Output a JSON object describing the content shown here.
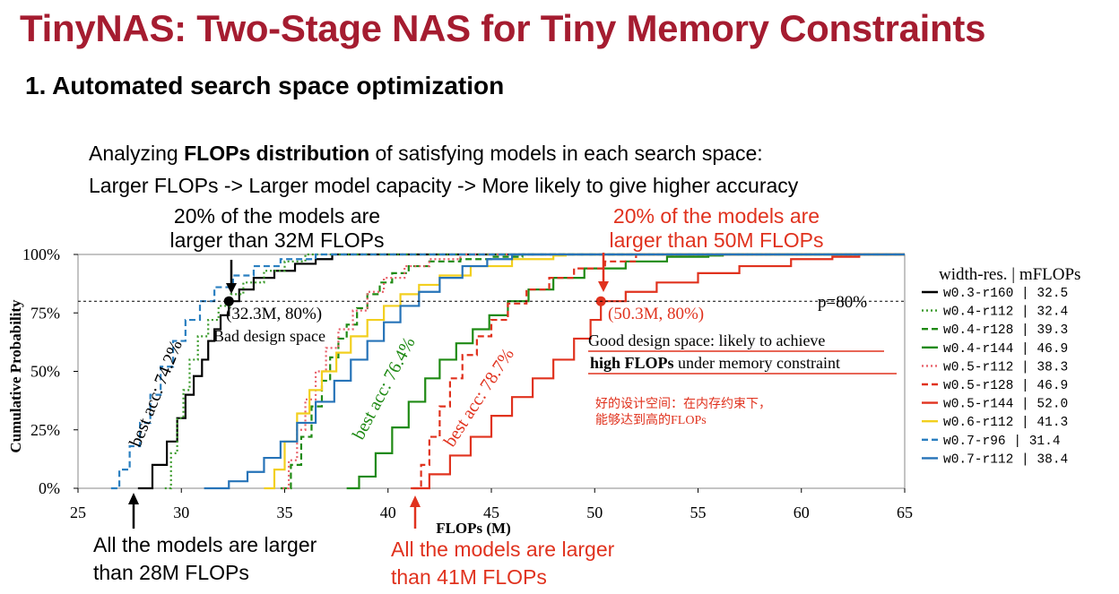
{
  "title": "TinyNAS: Two-Stage NAS for Tiny Memory Constraints",
  "subtitle": "1. Automated search space optimization",
  "intro": {
    "line1_pre": "Analyzing ",
    "line1_bold": "FLOPs distribution",
    "line1_post": " of satisfying models in each search space:",
    "line2": "Larger FLOPs -> Larger model capacity -> More likely to give higher accuracy"
  },
  "callouts": {
    "top_black_1": "20% of the models are",
    "top_black_2": "larger than 32M FLOPs",
    "top_red_1": "20% of the models are",
    "top_red_2": "larger than 50M FLOPs",
    "bottom_black_1": "All the models are larger",
    "bottom_black_2": "than 28M FLOPs",
    "bottom_red_1": "All the models are larger",
    "bottom_red_2": "than 41M FLOPs"
  },
  "annotations": {
    "point_black": "(32.3M, 80%)",
    "bad_design": "Bad design space",
    "point_red": "(50.3M, 80%)",
    "p80": "p=80%",
    "good_line1": "Good design space: likely to achieve",
    "good_line2_bold": "high FLOPs",
    "good_line2_rest": " under memory constraint",
    "cn_line1": "好的设计空间：在内存约束下，",
    "cn_line2": "能够达到高的FLOPs",
    "best_acc_black": "best acc: 74.2%",
    "best_acc_green": "best acc: 76.4%",
    "best_acc_red": "best acc: 78.7%"
  },
  "legend_header": "width-res. | mFLOPs",
  "colors": {
    "title_red": "#a51c30",
    "callout_red": "#e0321e",
    "black": "#000000",
    "green_dotted": "#3a9a2a",
    "dark_green": "#1f8a14",
    "pink": "#e8606a",
    "red_dashed": "#e0321e",
    "red": "#e0321e",
    "yellow": "#f2cf1e",
    "blue_dashed": "#2a7fc0",
    "blue": "#2673b8"
  },
  "chart_data": {
    "type": "line",
    "xlabel": "FLOPs (M)",
    "ylabel": "Cumulative Probability",
    "xlim": [
      25,
      65
    ],
    "ylim": [
      0,
      100
    ],
    "x_ticks": [
      "25",
      "30",
      "35",
      "40",
      "45",
      "50",
      "55",
      "60",
      "65"
    ],
    "y_ticks": [
      "0%",
      "25%",
      "50%",
      "75%",
      "100%"
    ],
    "reference_line_y": 80,
    "highlight_points": [
      {
        "x": 32.3,
        "y": 80
      },
      {
        "x": 50.3,
        "y": 80
      }
    ],
    "series": [
      {
        "name": "w0.3-r160",
        "mflops": "32.5",
        "color": "#000000",
        "dash": "solid",
        "x": [
          27.9,
          28.6,
          29.3,
          29.8,
          30.2,
          30.6,
          31.0,
          31.3,
          31.6,
          31.9,
          32.3,
          32.8,
          33.5,
          34.5,
          35.5,
          36.5,
          37.3
        ],
        "y": [
          0,
          10,
          20,
          30,
          40,
          48,
          55,
          63,
          68,
          74,
          80,
          85,
          90,
          93,
          96,
          98,
          100
        ]
      },
      {
        "name": "w0.4-r112",
        "mflops": "32.4",
        "color": "#3a9a2a",
        "dash": "dotted",
        "x": [
          29.2,
          29.5,
          29.8,
          30.1,
          30.4,
          30.8,
          31.3,
          31.8,
          32.4,
          33.0,
          34.0,
          35.0,
          36.0
        ],
        "y": [
          0,
          15,
          30,
          42,
          55,
          65,
          72,
          78,
          83,
          88,
          93,
          97,
          100
        ]
      },
      {
        "name": "w0.4-r128",
        "mflops": "39.3",
        "color": "#1f8a14",
        "dash": "dashed",
        "x": [
          34.8,
          35.3,
          35.8,
          36.3,
          36.8,
          37.2,
          37.6,
          38.0,
          38.5,
          39.0,
          39.6,
          40.2,
          41.0,
          42.0,
          43.5,
          45.0,
          46.5
        ],
        "y": [
          0,
          10,
          22,
          35,
          46,
          56,
          64,
          70,
          77,
          83,
          88,
          92,
          95,
          97,
          98,
          99,
          100
        ]
      },
      {
        "name": "w0.4-r144",
        "mflops": "46.9",
        "color": "#1f8a14",
        "dash": "solid",
        "x": [
          38.0,
          38.6,
          39.4,
          40.2,
          41.0,
          41.8,
          42.5,
          43.3,
          44.1,
          44.9,
          45.8,
          46.8,
          48.0,
          49.5,
          51.5,
          53.5,
          55.5,
          56.2
        ],
        "y": [
          0,
          5,
          15,
          26,
          37,
          47,
          55,
          62,
          68,
          74,
          80,
          85,
          90,
          94,
          97,
          99,
          99.5,
          100
        ]
      },
      {
        "name": "w0.5-r112",
        "mflops": "38.3",
        "color": "#e8606a",
        "dash": "dotted",
        "x": [
          34.9,
          35.2,
          35.6,
          36.0,
          36.5,
          37.0,
          37.6,
          38.3,
          39.0,
          39.8,
          40.8,
          42.0,
          43.5
        ],
        "y": [
          0,
          12,
          25,
          38,
          50,
          60,
          68,
          76,
          84,
          90,
          95,
          98,
          100
        ]
      },
      {
        "name": "w0.5-r128",
        "mflops": "46.9",
        "color": "#e0321e",
        "dash": "dashed",
        "x": [
          41.2,
          41.6,
          42.0,
          42.5,
          43.0,
          43.6,
          44.3,
          45.0,
          45.8,
          46.7,
          47.8,
          49.0,
          50.5,
          52.0
        ],
        "y": [
          0,
          10,
          22,
          35,
          47,
          57,
          65,
          72,
          79,
          85,
          90,
          94,
          97,
          100
        ]
      },
      {
        "name": "w0.5-r144",
        "mflops": "52.0",
        "color": "#e0321e",
        "dash": "solid",
        "x": [
          41.1,
          42.0,
          43.0,
          44.0,
          45.0,
          46.0,
          47.0,
          48.0,
          49.0,
          49.8,
          50.3,
          51.5,
          53.0,
          55.0,
          57.0,
          59.5,
          61.5,
          62.8
        ],
        "y": [
          0,
          6,
          14,
          22,
          31,
          39,
          47,
          55,
          64,
          72,
          80,
          84,
          88,
          92,
          95,
          98,
          99,
          100
        ]
      },
      {
        "name": "w0.6-r112",
        "mflops": "41.3",
        "color": "#f2cf1e",
        "dash": "solid",
        "x": [
          34.0,
          34.5,
          35.0,
          35.6,
          36.2,
          36.8,
          37.5,
          38.2,
          39.0,
          39.8,
          40.6,
          41.5,
          42.5,
          44.0,
          46.0,
          48.0,
          48.6
        ],
        "y": [
          0,
          8,
          20,
          32,
          42,
          50,
          58,
          65,
          72,
          78,
          83,
          87,
          91,
          95,
          98,
          99.5,
          100
        ]
      },
      {
        "name": "w0.7-r96",
        "mflops": "31.4",
        "color": "#2a7fc0",
        "dash": "dashed",
        "x": [
          26.6,
          27.0,
          27.5,
          28.0,
          28.5,
          29.0,
          29.6,
          30.2,
          30.9,
          31.6,
          32.5,
          33.5,
          34.8,
          36.5
        ],
        "y": [
          0,
          8,
          18,
          28,
          40,
          52,
          63,
          72,
          80,
          86,
          91,
          95,
          98,
          100
        ]
      },
      {
        "name": "w0.7-r112",
        "mflops": "38.4",
        "color": "#2673b8",
        "dash": "solid",
        "x": [
          31.1,
          32.3,
          33.2,
          34.0,
          34.8,
          35.6,
          36.5,
          37.4,
          38.2,
          39.0,
          39.8,
          40.6,
          41.5,
          42.5,
          43.6,
          44.8,
          46.0
        ],
        "y": [
          0,
          3,
          7,
          13,
          20,
          28,
          37,
          46,
          55,
          63,
          71,
          78,
          84,
          90,
          95,
          98,
          100
        ]
      }
    ]
  }
}
